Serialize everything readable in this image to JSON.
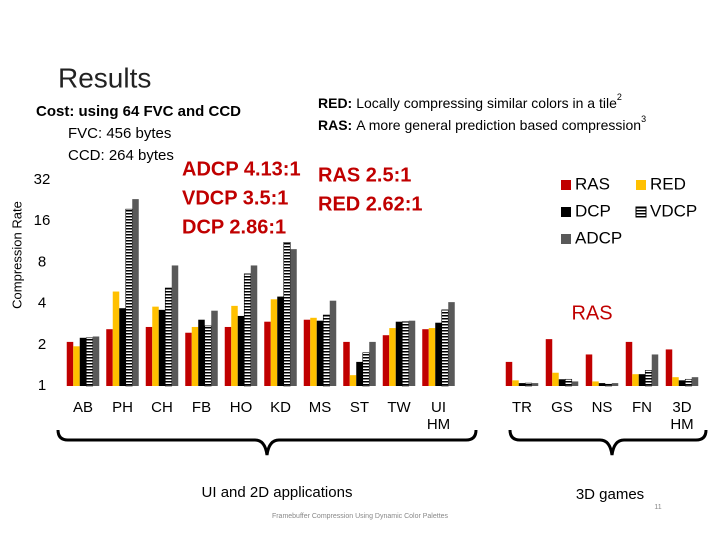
{
  "slide_title": "Results",
  "cost": [
    "Cost: using 64 FVC and CCD",
    "FVC: 456 bytes",
    "CCD: 264 bytes"
  ],
  "notes": [
    {
      "label": "RED:",
      "text": "Locally compressing similar colors in a tile",
      "ref": "2"
    },
    {
      "label": "RAS:",
      "text": "A more general prediction based compression",
      "ref": "3"
    }
  ],
  "ratios_left": [
    "ADCP 4.13:1",
    "VDCP 3.5:1",
    "DCP 2.86:1"
  ],
  "ratios_right": [
    "RAS 2.5:1",
    "RED 2.62:1"
  ],
  "annotation": "RAS",
  "footer": "Framebuffer Compression Using Dynamic Color Palettes",
  "page_number": "11",
  "chart_data": {
    "type": "bar",
    "y_label": "Compression Rate",
    "log_base": 2,
    "ylim": [
      1,
      32
    ],
    "yticks": [
      1,
      2,
      4,
      8,
      16,
      32
    ],
    "categories": [
      "AB",
      "PH",
      "CH",
      "FB",
      "HO",
      "KD",
      "MS",
      "ST",
      "TW",
      "UI HM",
      "TR",
      "GS",
      "NS",
      "FN",
      "3D HM"
    ],
    "groups": [
      "UI and 2D applications",
      "3D games"
    ],
    "series": [
      {
        "name": "RAS",
        "color": "#c00000",
        "values": [
          2.1,
          2.6,
          2.7,
          2.45,
          2.7,
          2.95,
          3.05,
          2.1,
          2.35,
          2.6,
          1.5,
          2.2,
          1.7,
          2.1,
          1.85
        ]
      },
      {
        "name": "RED",
        "color": "#ffc000",
        "values": [
          1.95,
          4.9,
          3.8,
          2.7,
          3.85,
          4.3,
          3.15,
          1.2,
          2.65,
          2.65,
          1.1,
          1.25,
          1.08,
          1.22,
          1.16
        ]
      },
      {
        "name": "DCP",
        "color": "#000000",
        "values": [
          2.25,
          3.7,
          3.6,
          3.05,
          3.25,
          4.5,
          3.0,
          1.5,
          2.95,
          2.9,
          1.05,
          1.12,
          1.05,
          1.22,
          1.1
        ]
      },
      {
        "name": "VDCP",
        "color": "#000000",
        "pattern": "stripes",
        "values": [
          2.25,
          19.6,
          5.2,
          2.75,
          6.6,
          11.2,
          3.3,
          1.75,
          2.95,
          3.6,
          1.05,
          1.12,
          1.03,
          1.3,
          1.12
        ]
      },
      {
        "name": "ADCP",
        "color": "#595959",
        "values": [
          2.3,
          23.2,
          7.6,
          3.55,
          7.6,
          10.0,
          4.2,
          2.1,
          3.0,
          4.1,
          1.05,
          1.08,
          1.05,
          1.7,
          1.16
        ]
      }
    ]
  }
}
